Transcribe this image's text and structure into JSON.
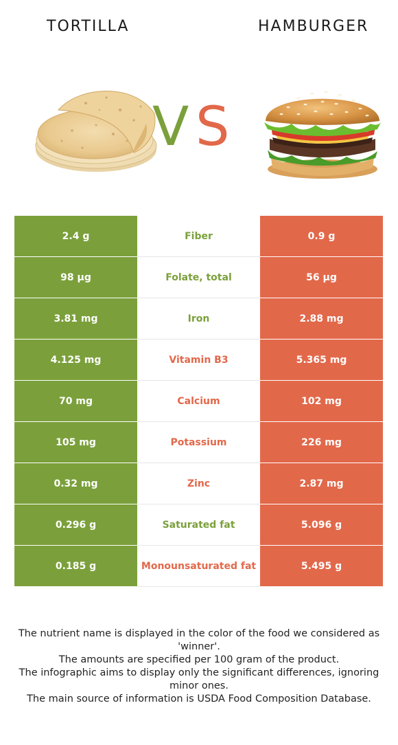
{
  "left_food": {
    "name": "TORTILLA"
  },
  "right_food": {
    "name": "HAMBURGER"
  },
  "vs": {
    "v": "V",
    "s": "S"
  },
  "colors": {
    "left": "#7ba03b",
    "right": "#e2684a",
    "winner_left": "#7ba03b",
    "winner_right": "#e2684a"
  },
  "rows": [
    {
      "left": "2.4 g",
      "nutrient": "Fiber",
      "right": "0.9 g",
      "winner": "left"
    },
    {
      "left": "98 µg",
      "nutrient": "Folate, total",
      "right": "56 µg",
      "winner": "left"
    },
    {
      "left": "3.81 mg",
      "nutrient": "Iron",
      "right": "2.88 mg",
      "winner": "left"
    },
    {
      "left": "4.125 mg",
      "nutrient": "Vitamin B3",
      "right": "5.365 mg",
      "winner": "right"
    },
    {
      "left": "70 mg",
      "nutrient": "Calcium",
      "right": "102 mg",
      "winner": "right"
    },
    {
      "left": "105 mg",
      "nutrient": "Potassium",
      "right": "226 mg",
      "winner": "right"
    },
    {
      "left": "0.32 mg",
      "nutrient": "Zinc",
      "right": "2.87 mg",
      "winner": "right"
    },
    {
      "left": "0.296 g",
      "nutrient": "Saturated fat",
      "right": "5.096 g",
      "winner": "left"
    },
    {
      "left": "0.185 g",
      "nutrient": "Monounsaturated fat",
      "right": "5.495 g",
      "winner": "right"
    }
  ],
  "footer": {
    "line1": "The nutrient name is displayed in the color of the food we considered as 'winner'.",
    "line2": "The amounts are specified per 100 gram of the product.",
    "line3": "The infographic aims to display only the significant differences, ignoring minor ones.",
    "line4": "The main source of information is USDA Food Composition Database."
  }
}
